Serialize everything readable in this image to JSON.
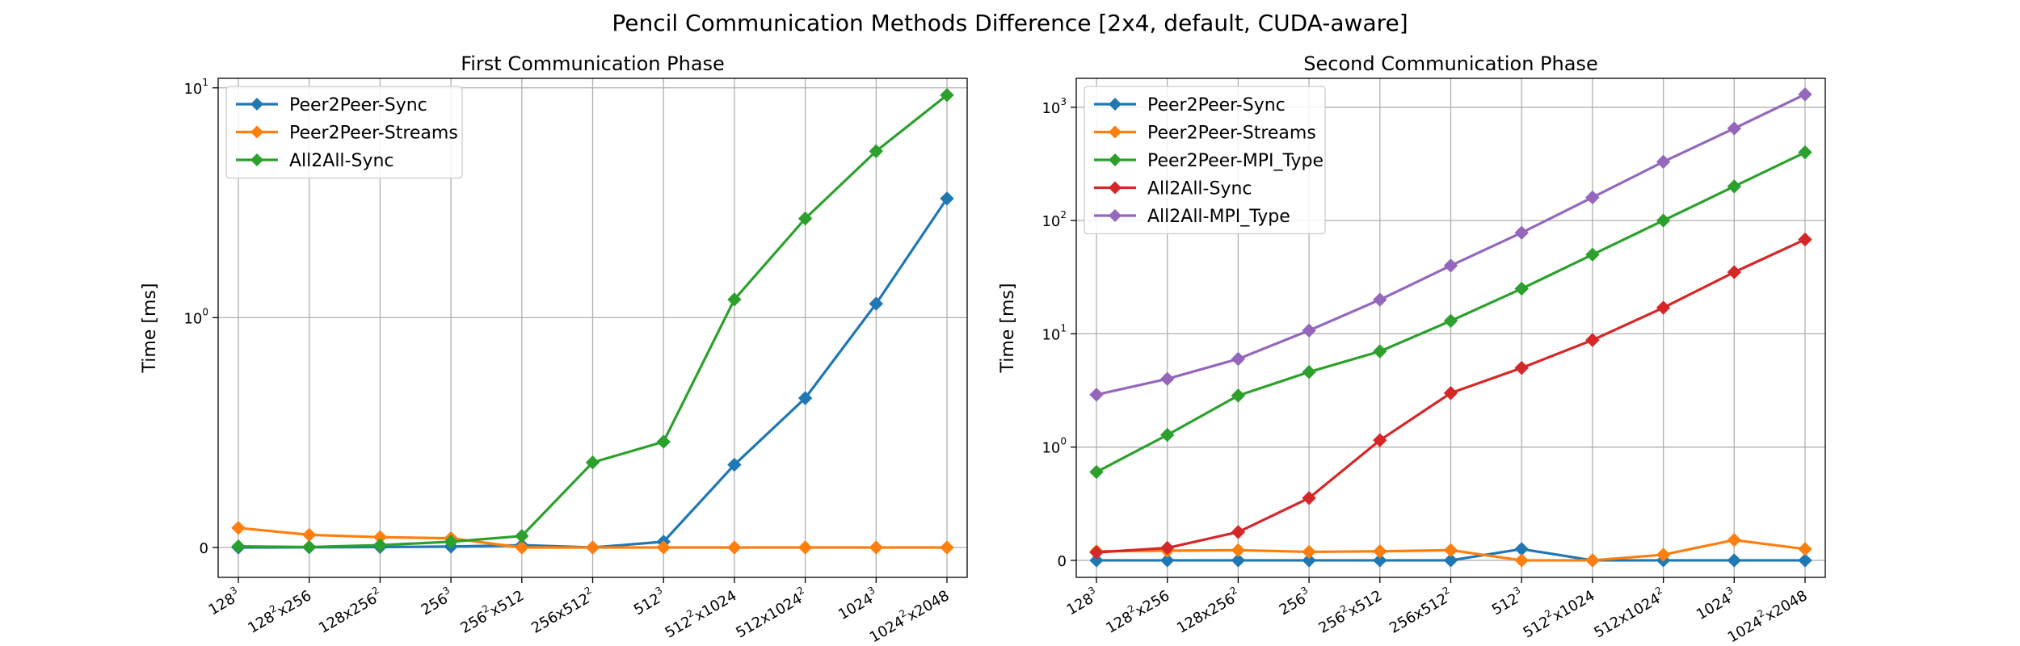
{
  "figure": {
    "title": "Pencil Communication Methods Difference [2x4, default, CUDA-aware]"
  },
  "colors": {
    "blue": "#1f77b4",
    "orange": "#ff7f0e",
    "green": "#2ca02c",
    "red": "#d62728",
    "purple": "#9467bd"
  },
  "chart_data": [
    {
      "type": "line",
      "title": "First Communication Phase",
      "xlabel": "",
      "ylabel": "Time [ms]",
      "yscale": "symlog",
      "ylim": [
        -0.13,
        11
      ],
      "yticks": [
        {
          "value": 0,
          "base": "0",
          "exp": ""
        },
        {
          "value": 1,
          "base": "10",
          "exp": "0"
        },
        {
          "value": 10,
          "base": "10",
          "exp": "1"
        }
      ],
      "categories": [
        {
          "base": "128",
          "exp": "3",
          "rest": ""
        },
        {
          "base": "128",
          "exp": "2",
          "rest": "x256"
        },
        {
          "base": "128x256",
          "exp": "2",
          "rest": ""
        },
        {
          "base": "256",
          "exp": "3",
          "rest": ""
        },
        {
          "base": "256",
          "exp": "2",
          "rest": "x512"
        },
        {
          "base": "256x512",
          "exp": "2",
          "rest": ""
        },
        {
          "base": "512",
          "exp": "3",
          "rest": ""
        },
        {
          "base": "512",
          "exp": "2",
          "rest": "x1024"
        },
        {
          "base": "512x1024",
          "exp": "2",
          "rest": ""
        },
        {
          "base": "1024",
          "exp": "3",
          "rest": ""
        },
        {
          "base": "1024",
          "exp": "2",
          "rest": "x2048"
        }
      ],
      "grid": true,
      "legend_position": "upper-left",
      "series": [
        {
          "name": "Peer2Peer-Sync",
          "color": "#1f77b4",
          "values": [
            0.0,
            0.001,
            0.002,
            0.004,
            0.01,
            0.0,
            0.025,
            0.36,
            0.65,
            1.15,
            3.3
          ]
        },
        {
          "name": "Peer2Peer-Streams",
          "color": "#ff7f0e",
          "values": [
            0.085,
            0.055,
            0.045,
            0.04,
            0.0,
            0.0,
            0.0,
            0.0,
            0.0,
            0.0,
            0.0
          ]
        },
        {
          "name": "All2All-Sync",
          "color": "#2ca02c",
          "values": [
            0.005,
            0.002,
            0.01,
            0.025,
            0.05,
            0.37,
            0.46,
            1.2,
            2.7,
            5.3,
            9.3
          ]
        }
      ]
    },
    {
      "type": "line",
      "title": "Second Communication Phase",
      "xlabel": "",
      "ylabel": "Time [ms]",
      "yscale": "symlog",
      "ylim": [
        -0.15,
        1800
      ],
      "yticks": [
        {
          "value": 0,
          "base": "0",
          "exp": ""
        },
        {
          "value": 1,
          "base": "10",
          "exp": "0"
        },
        {
          "value": 10,
          "base": "10",
          "exp": "1"
        },
        {
          "value": 100,
          "base": "10",
          "exp": "2"
        },
        {
          "value": 1000,
          "base": "10",
          "exp": "3"
        }
      ],
      "categories": [
        {
          "base": "128",
          "exp": "3",
          "rest": ""
        },
        {
          "base": "128",
          "exp": "2",
          "rest": "x256"
        },
        {
          "base": "128x256",
          "exp": "2",
          "rest": ""
        },
        {
          "base": "256",
          "exp": "3",
          "rest": ""
        },
        {
          "base": "256",
          "exp": "2",
          "rest": "x512"
        },
        {
          "base": "256x512",
          "exp": "2",
          "rest": ""
        },
        {
          "base": "512",
          "exp": "3",
          "rest": ""
        },
        {
          "base": "512",
          "exp": "2",
          "rest": "x1024"
        },
        {
          "base": "512x1024",
          "exp": "2",
          "rest": ""
        },
        {
          "base": "1024",
          "exp": "3",
          "rest": ""
        },
        {
          "base": "1024",
          "exp": "2",
          "rest": "x2048"
        }
      ],
      "grid": true,
      "legend_position": "upper-left",
      "series": [
        {
          "name": "Peer2Peer-Sync",
          "color": "#1f77b4",
          "values": [
            0.0,
            0.0,
            0.0,
            0.0,
            0.0,
            0.0,
            0.1,
            0.0,
            0.0,
            0.0,
            0.0
          ]
        },
        {
          "name": "Peer2Peer-Streams",
          "color": "#ff7f0e",
          "values": [
            0.08,
            0.085,
            0.09,
            0.075,
            0.08,
            0.09,
            0.0,
            0.0,
            0.05,
            0.18,
            0.1
          ]
        },
        {
          "name": "Peer2Peer-MPI_Type",
          "color": "#2ca02c",
          "values": [
            0.78,
            1.28,
            2.85,
            4.6,
            7.0,
            13.0,
            25.0,
            50.0,
            100.0,
            200.0,
            400.0
          ]
        },
        {
          "name": "All2All-Sync",
          "color": "#d62728",
          "values": [
            0.07,
            0.11,
            0.25,
            0.55,
            1.15,
            3.0,
            5.0,
            8.8,
            17.0,
            35.0,
            68.0
          ]
        },
        {
          "name": "All2All-MPI_Type",
          "color": "#9467bd",
          "values": [
            2.9,
            4.0,
            6.0,
            10.7,
            20.0,
            40.0,
            78.0,
            160.0,
            330.0,
            650.0,
            1300.0
          ]
        }
      ]
    }
  ]
}
